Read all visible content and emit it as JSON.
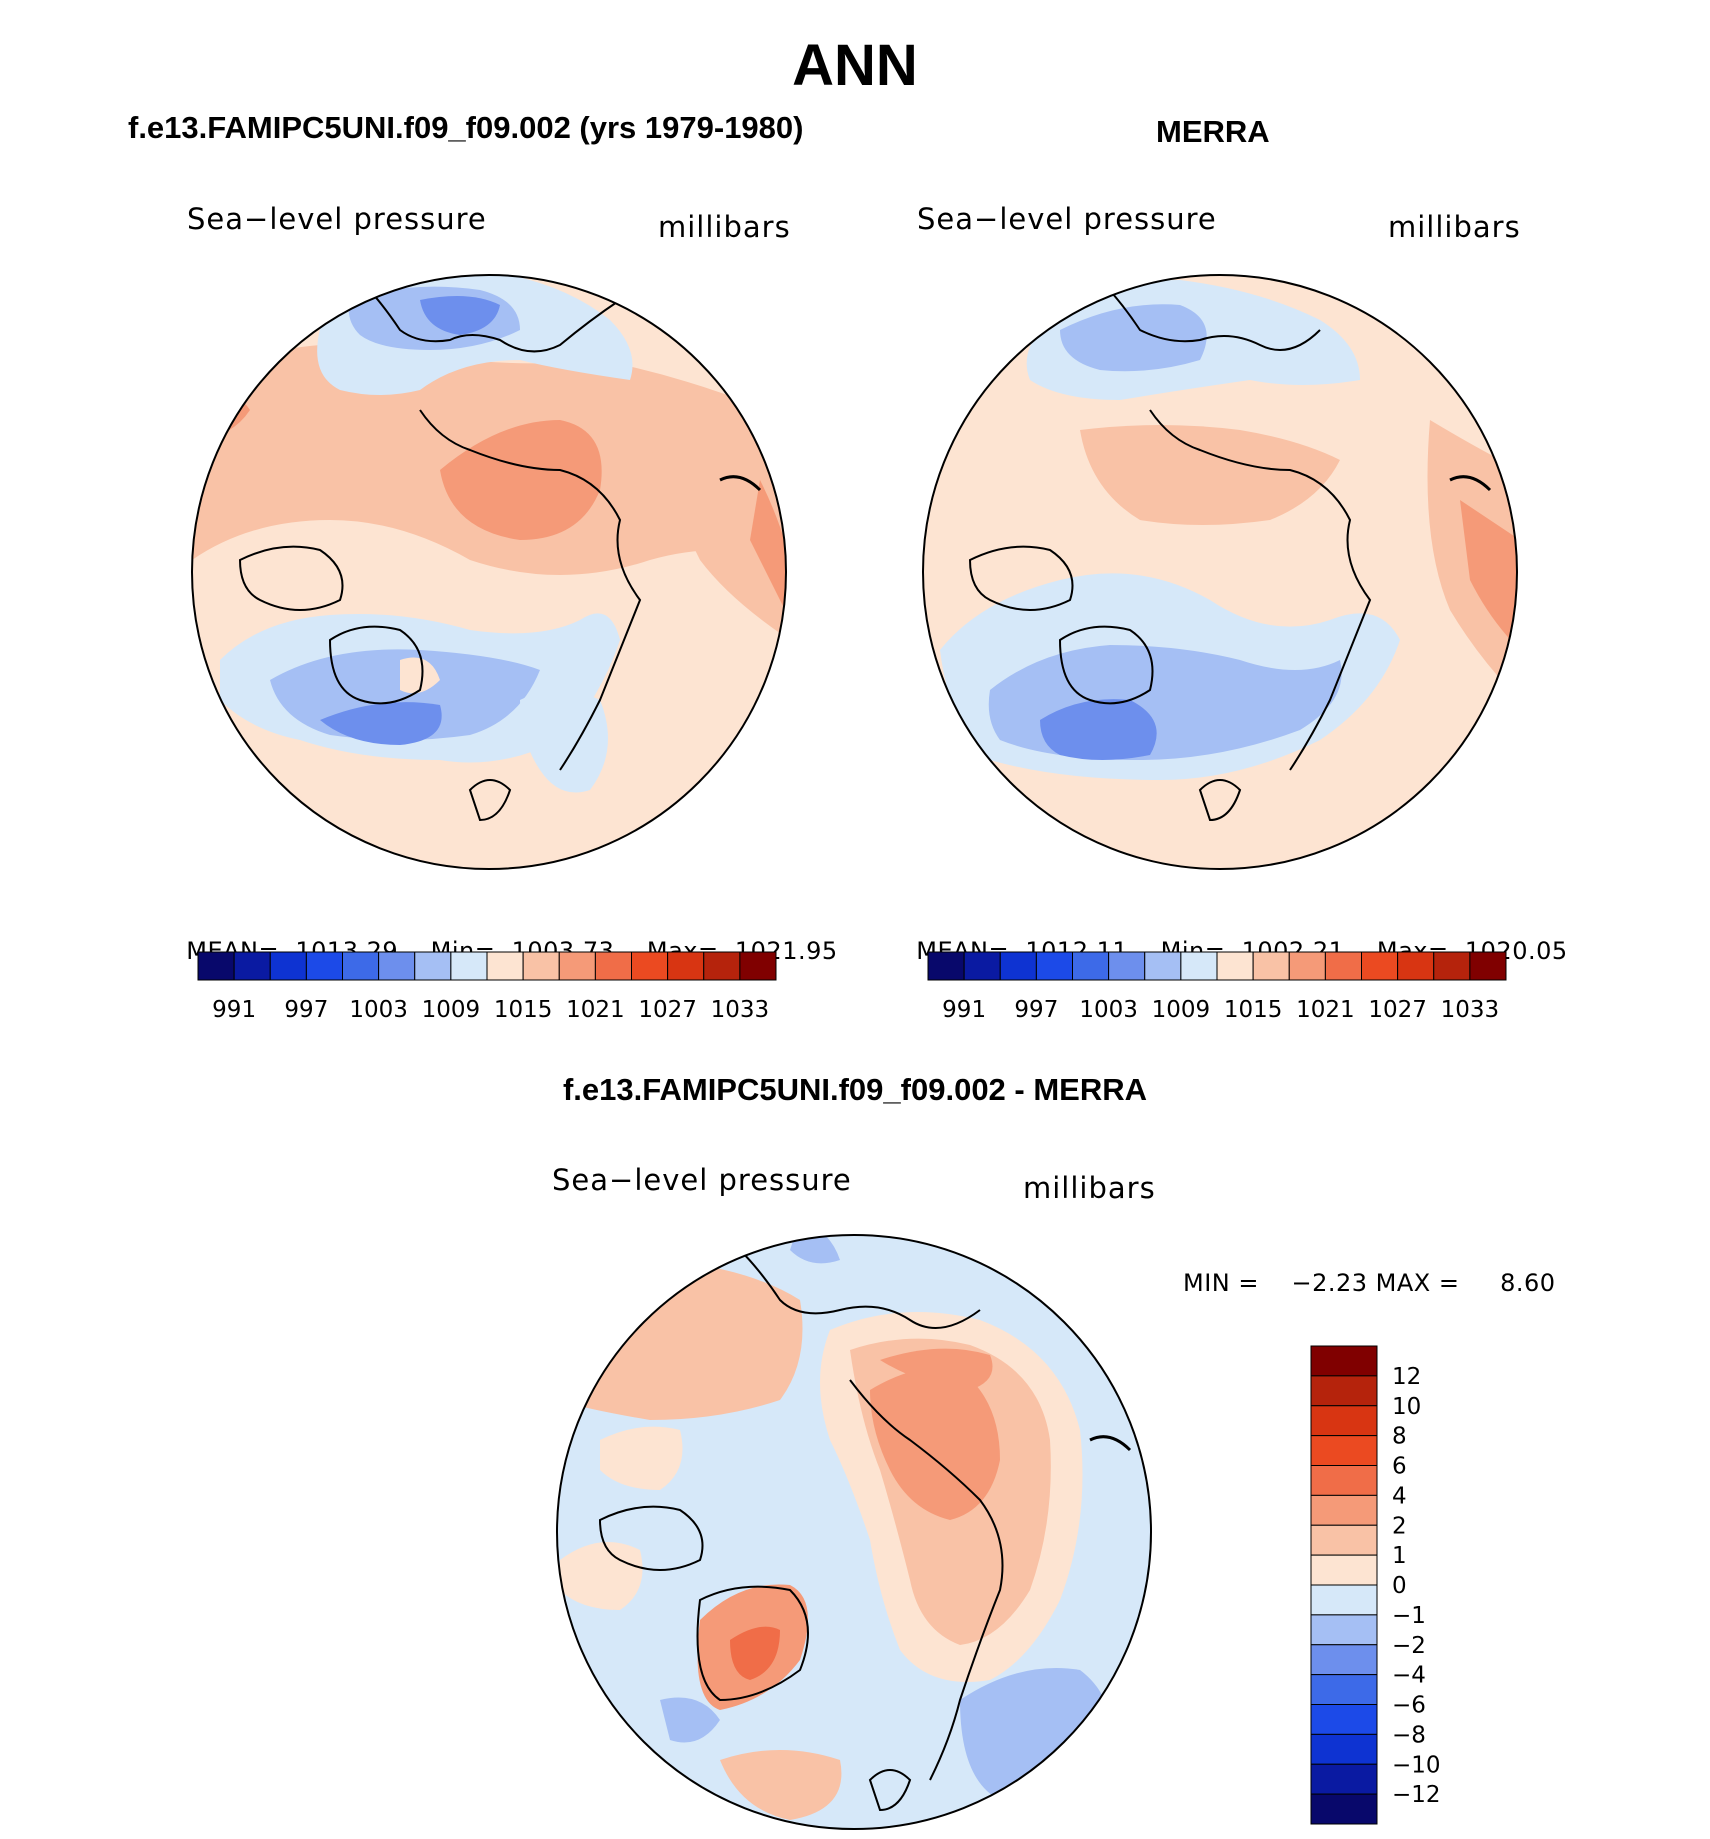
{
  "title": "ANN",
  "chart_data": [
    {
      "type": "heatmap",
      "panel": "model",
      "title": "f.e13.FAMIPC5UNI.f09_f09.002 (yrs 1979-1980)",
      "field_label": "Sea−level pressure",
      "units": "millibars",
      "projection": "north polar stereographic",
      "stats": {
        "mean_label": "MEAN=",
        "mean": "1013.29",
        "min_label": "Min=",
        "min": "1003.73",
        "max_label": "Max=",
        "max": "1021.95"
      },
      "colorbar": {
        "orientation": "horizontal",
        "tick_labels": [
          "991",
          "997",
          "1003",
          "1009",
          "1015",
          "1021",
          "1027",
          "1033"
        ],
        "levels": [
          988,
          991,
          994,
          997,
          1000,
          1003,
          1006,
          1009,
          1012,
          1015,
          1018,
          1021,
          1024,
          1027,
          1030,
          1033,
          1036
        ]
      }
    },
    {
      "type": "heatmap",
      "panel": "observations",
      "title": "MERRA",
      "field_label": "Sea−level pressure",
      "units": "millibars",
      "projection": "north polar stereographic",
      "stats": {
        "mean_label": "MEAN=",
        "mean": "1012.11",
        "min_label": "Min=",
        "min": "1002.21",
        "max_label": "Max=",
        "max": "1020.05"
      },
      "colorbar": {
        "orientation": "horizontal",
        "tick_labels": [
          "991",
          "997",
          "1003",
          "1009",
          "1015",
          "1021",
          "1027",
          "1033"
        ],
        "levels": [
          988,
          991,
          994,
          997,
          1000,
          1003,
          1006,
          1009,
          1012,
          1015,
          1018,
          1021,
          1024,
          1027,
          1030,
          1033,
          1036
        ]
      }
    },
    {
      "type": "heatmap",
      "panel": "difference",
      "title": "f.e13.FAMIPC5UNI.f09_f09.002 - MERRA",
      "field_label": "Sea−level pressure",
      "units": "millibars",
      "projection": "north polar stereographic",
      "stats": {
        "text": "MIN =    −2.23 MAX =     8.60",
        "min": -2.23,
        "max": 8.6
      },
      "colorbar": {
        "orientation": "vertical",
        "tick_labels": [
          "12",
          "10",
          "8",
          "6",
          "4",
          "2",
          "1",
          "0",
          "−1",
          "−2",
          "−4",
          "−6",
          "−8",
          "−10",
          "−12"
        ],
        "levels": [
          -12,
          -10,
          -8,
          -6,
          -4,
          -2,
          -1,
          0,
          1,
          2,
          4,
          6,
          8,
          10,
          12
        ]
      }
    }
  ],
  "palettes": {
    "blue_red_16": [
      "#08086b",
      "#0a1aa2",
      "#0e33d2",
      "#1c4ae8",
      "#3d6ae8",
      "#6d8fed",
      "#a5bff4",
      "#d6e8f9",
      "#fde4d2",
      "#f9c2a6",
      "#f59a78",
      "#f06d48",
      "#eb4a21",
      "#d83512",
      "#b5230c",
      "#800000"
    ],
    "diff_16": [
      "#800000",
      "#b5230c",
      "#d83512",
      "#eb4a21",
      "#f06d48",
      "#f59a78",
      "#f9c2a6",
      "#fde4d2",
      "#d6e8f9",
      "#a5bff4",
      "#6d8fed",
      "#3d6ae8",
      "#1c4ae8",
      "#0e33d2",
      "#0a1aa2",
      "#08086b"
    ]
  }
}
